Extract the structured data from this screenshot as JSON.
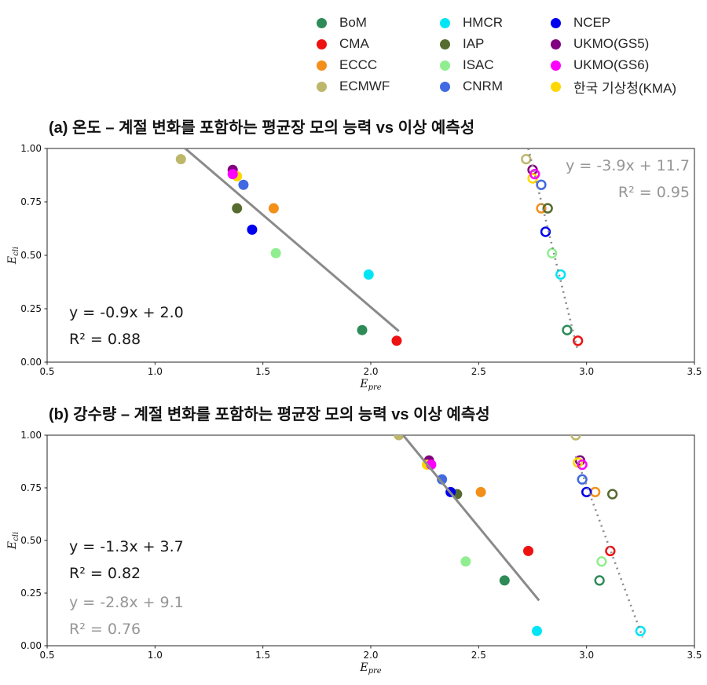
{
  "legend": {
    "items": [
      {
        "label": "BoM",
        "color": "#2e8b57"
      },
      {
        "label": "CMA",
        "color": "#ee1111"
      },
      {
        "label": "ECCC",
        "color": "#f39019"
      },
      {
        "label": "ECMWF",
        "color": "#bdb76b"
      },
      {
        "label": "HMCR",
        "color": "#00e5f5"
      },
      {
        "label": "IAP",
        "color": "#556b2f"
      },
      {
        "label": "ISAC",
        "color": "#90ee90"
      },
      {
        "label": "CNRM",
        "color": "#4169e1"
      },
      {
        "label": "NCEP",
        "color": "#0000ee"
      },
      {
        "label": "UKMO(GS5)",
        "color": "#800080"
      },
      {
        "label": "UKMO(GS6)",
        "color": "#ff00ff"
      },
      {
        "label": "한국 기상청(KMA)",
        "color": "#ffd700"
      }
    ]
  },
  "colors": {
    "line_gray": "#8a8a8a",
    "eq_black": "#1a1a1a",
    "eq_gray": "#969696",
    "spine": "#262626"
  },
  "chart_data": [
    {
      "type": "scatter",
      "title": "(a) 온도 – 계절 변화를 포함하는 평균장 모의 능력 vs 이상 예측성",
      "xlabel": "E_pre",
      "ylabel": "E_cli",
      "xlim": [
        0.5,
        3.5
      ],
      "ylim": [
        0.0,
        1.0
      ],
      "grid": false,
      "xticks": {
        "values": [
          0.5,
          1.0,
          1.5,
          2.0,
          2.5,
          3.0,
          3.5
        ],
        "labels": [
          "0.5",
          "1.0",
          "1.5",
          "2.0",
          "2.5",
          "3.0",
          "3.5"
        ]
      },
      "yticks": {
        "values": [
          0.0,
          0.25,
          0.5,
          0.75,
          1.0
        ],
        "labels": [
          "0.00",
          "0.25",
          "0.50",
          "0.75",
          "1.00"
        ]
      },
      "series": [
        {
          "name": "BoM",
          "filled": [
            1.96,
            0.15
          ],
          "open": [
            2.91,
            0.15
          ]
        },
        {
          "name": "CMA",
          "filled": [
            2.12,
            0.1
          ],
          "open": [
            2.96,
            0.1
          ]
        },
        {
          "name": "ECCC",
          "filled": [
            1.55,
            0.72
          ],
          "open": [
            2.79,
            0.72
          ]
        },
        {
          "name": "ECMWF",
          "filled": [
            1.12,
            0.95
          ],
          "open": [
            2.72,
            0.95
          ]
        },
        {
          "name": "HMCR",
          "filled": [
            1.99,
            0.41
          ],
          "open": [
            2.88,
            0.41
          ]
        },
        {
          "name": "IAP",
          "filled": [
            1.38,
            0.72
          ],
          "open": [
            2.82,
            0.72
          ]
        },
        {
          "name": "ISAC",
          "filled": [
            1.56,
            0.51
          ],
          "open": [
            2.84,
            0.51
          ]
        },
        {
          "name": "CNRM",
          "filled": [
            1.41,
            0.83
          ],
          "open": [
            2.79,
            0.83
          ]
        },
        {
          "name": "NCEP",
          "filled": [
            1.45,
            0.62
          ],
          "open": [
            2.81,
            0.61
          ]
        },
        {
          "name": "UKMO(GS5)",
          "filled": [
            1.36,
            0.9
          ],
          "open": [
            2.75,
            0.9
          ]
        },
        {
          "name": "UKMO(GS6)",
          "filled": [
            1.36,
            0.88
          ],
          "open": [
            2.76,
            0.88
          ]
        },
        {
          "name": "한국 기상청(KMA)",
          "filled": [
            1.38,
            0.87
          ],
          "open": [
            2.75,
            0.86
          ]
        }
      ],
      "fits": [
        {
          "style": "solid",
          "eq": "y = -0.9x + 2.0",
          "r2": "R² = 0.88",
          "x1": 1.14,
          "y1": 1.0,
          "x2": 2.13,
          "y2": 0.145
        },
        {
          "style": "dotted",
          "eq": "y = -3.9x + 11.7",
          "r2": "R² = 0.95",
          "x1": 2.73,
          "y1": 1.0,
          "x2": 2.96,
          "y2": 0.05
        }
      ]
    },
    {
      "type": "scatter",
      "title": "(b) 강수량 – 계절 변화를 포함하는 평균장 모의 능력 vs 이상 예측성",
      "xlabel": "E_pre",
      "ylabel": "E_cli",
      "xlim": [
        0.5,
        3.5
      ],
      "ylim": [
        0.0,
        1.0
      ],
      "grid": false,
      "xticks": {
        "values": [
          0.5,
          1.0,
          1.5,
          2.0,
          2.5,
          3.0,
          3.5
        ],
        "labels": [
          "0.5",
          "1.0",
          "1.5",
          "2.0",
          "2.5",
          "3.0",
          "3.5"
        ]
      },
      "yticks": {
        "values": [
          0.0,
          0.25,
          0.5,
          0.75,
          1.0
        ],
        "labels": [
          "0.00",
          "0.25",
          "0.50",
          "0.75",
          "1.00"
        ]
      },
      "series": [
        {
          "name": "BoM",
          "filled": [
            2.62,
            0.31
          ],
          "open": [
            3.06,
            0.31
          ]
        },
        {
          "name": "CMA",
          "filled": [
            2.73,
            0.45
          ],
          "open": [
            3.11,
            0.45
          ]
        },
        {
          "name": "ECCC",
          "filled": [
            2.51,
            0.73
          ],
          "open": [
            3.04,
            0.73
          ]
        },
        {
          "name": "ECMWF",
          "filled": [
            2.13,
            1.0
          ],
          "open": [
            2.95,
            1.0
          ]
        },
        {
          "name": "HMCR",
          "filled": [
            2.77,
            0.07
          ],
          "open": [
            3.25,
            0.07
          ]
        },
        {
          "name": "IAP",
          "filled": [
            2.4,
            0.72
          ],
          "open": [
            3.12,
            0.72
          ]
        },
        {
          "name": "ISAC",
          "filled": [
            2.44,
            0.4
          ],
          "open": [
            3.07,
            0.4
          ]
        },
        {
          "name": "CNRM",
          "filled": [
            2.33,
            0.79
          ],
          "open": [
            2.98,
            0.79
          ]
        },
        {
          "name": "NCEP",
          "filled": [
            2.37,
            0.73
          ],
          "open": [
            3.0,
            0.73
          ]
        },
        {
          "name": "UKMO(GS5)",
          "filled": [
            2.27,
            0.88
          ],
          "open": [
            2.97,
            0.88
          ]
        },
        {
          "name": "UKMO(GS6)",
          "filled": [
            2.28,
            0.86
          ],
          "open": [
            2.98,
            0.86
          ]
        },
        {
          "name": "한국 기상청(KMA)",
          "filled": [
            2.26,
            0.86
          ],
          "open": [
            2.96,
            0.87
          ]
        }
      ],
      "fits": [
        {
          "style": "solid",
          "eq": "y = -1.3x + 3.7",
          "r2": "R² = 0.82",
          "x1": 2.15,
          "y1": 1.0,
          "x2": 2.78,
          "y2": 0.215
        },
        {
          "style": "dotted",
          "eq": "y = -2.8x + 9.1",
          "r2": "R² = 0.76",
          "x1": 2.95,
          "y1": 0.9,
          "x2": 3.26,
          "y2": 0.04
        }
      ]
    }
  ]
}
